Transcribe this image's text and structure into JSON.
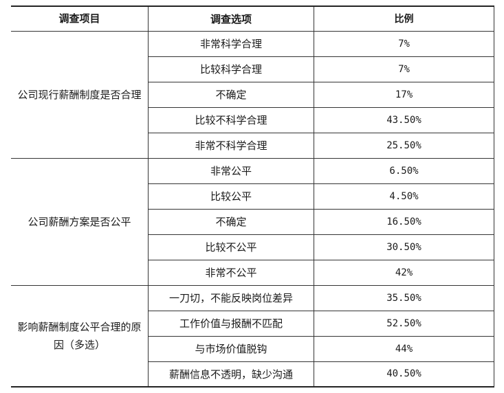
{
  "headers": [
    "调查项目",
    "调查选项",
    "比例"
  ],
  "groups": [
    {
      "item": "公司现行薪酬制度是否合理",
      "rows": [
        {
          "option": "非常科学合理",
          "ratio": "7%"
        },
        {
          "option": "比较科学合理",
          "ratio": "7%"
        },
        {
          "option": "不确定",
          "ratio": "17%"
        },
        {
          "option": "比较不科学合理",
          "ratio": "43.50%"
        },
        {
          "option": "非常不科学合理",
          "ratio": "25.50%"
        }
      ]
    },
    {
      "item": "公司薪酬方案是否公平",
      "rows": [
        {
          "option": "非常公平",
          "ratio": "6.50%"
        },
        {
          "option": "比较公平",
          "ratio": "4.50%"
        },
        {
          "option": "不确定",
          "ratio": "16.50%"
        },
        {
          "option": "比较不公平",
          "ratio": "30.50%"
        },
        {
          "option": "非常不公平",
          "ratio": "42%"
        }
      ]
    },
    {
      "item": "影响薪酬制度公平合理的原因（多选）",
      "rows": [
        {
          "option": "一刀切，不能反映岗位差异",
          "ratio": "35.50%"
        },
        {
          "option": "工作价值与报酬不匹配",
          "ratio": "52.50%"
        },
        {
          "option": "与市场价值脱钩",
          "ratio": "44%"
        },
        {
          "option": "薪酬信息不透明，缺少沟通",
          "ratio": "40.50%"
        }
      ]
    }
  ]
}
